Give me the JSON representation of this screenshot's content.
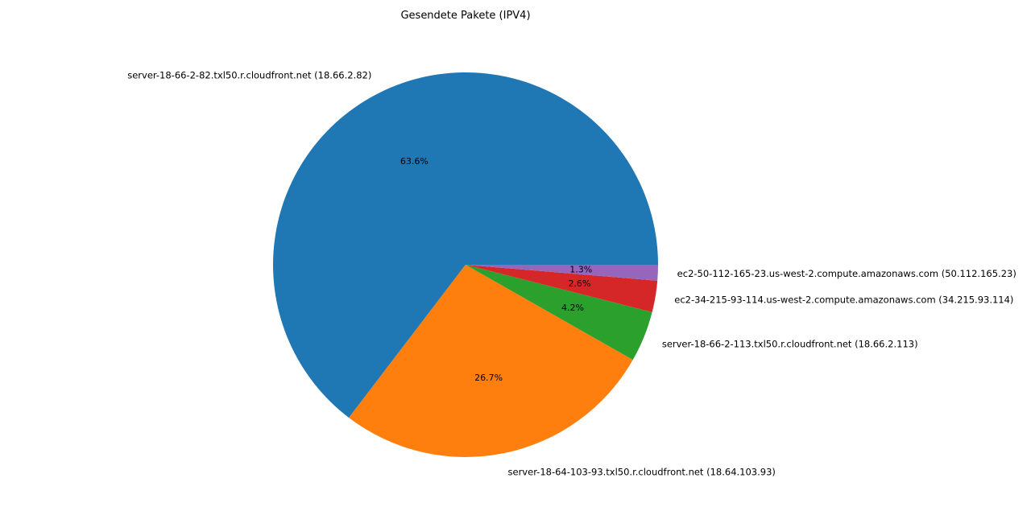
{
  "chart_data": {
    "type": "pie",
    "title": "Gesendete Pakete (IPV4)",
    "start_angle_deg": 0,
    "direction": "counterclockwise",
    "slices": [
      {
        "label": "server-18-66-2-82.txl50.r.cloudfront.net (18.66.2.82)",
        "percent": 63.6,
        "pct_label": "63.6%",
        "color": "#1f77b4"
      },
      {
        "label": "server-18-64-103-93.txl50.r.cloudfront.net (18.64.103.93)",
        "percent": 26.7,
        "pct_label": "26.7%",
        "color": "#ff7f0e"
      },
      {
        "label": "server-18-66-2-113.txl50.r.cloudfront.net (18.66.2.113)",
        "percent": 4.2,
        "pct_label": "4.2%",
        "color": "#2ca02c"
      },
      {
        "label": "ec2-34-215-93-114.us-west-2.compute.amazonaws.com (34.215.93.114)",
        "percent": 2.6,
        "pct_label": "2.6%",
        "color": "#d62728"
      },
      {
        "label": "ec2-50-112-165-23.us-west-2.compute.amazonaws.com (50.112.165.23)",
        "percent": 1.3,
        "pct_label": "1.3%",
        "color": "#9467bd"
      }
    ]
  }
}
